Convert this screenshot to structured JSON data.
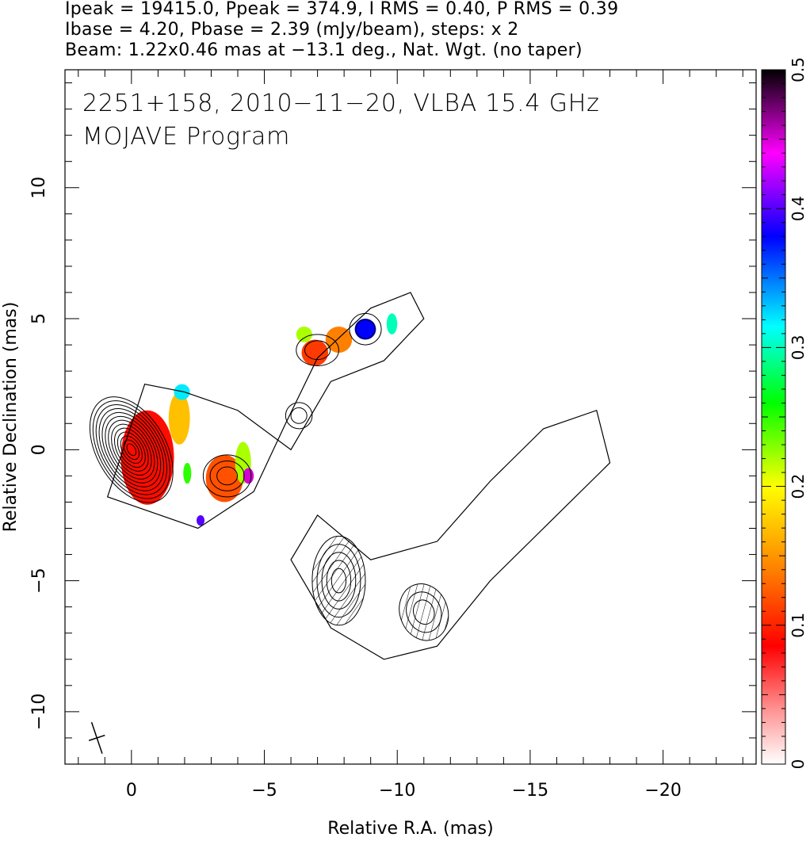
{
  "header": {
    "line1": "Ipeak = 19415.0, Ppeak = 374.9, I RMS = 0.40, P RMS = 0.39",
    "line2": "Ibase = 4.20, Pbase = 2.39 (mJy/beam), steps: x 2",
    "line3": "Beam: 1.22x0.46 mas at −13.1 deg., Nat. Wgt. (no taper)"
  },
  "overlay": {
    "line1": "2251+158, 2010−11−20, VLBA 15.4 GHz",
    "line2": "MOJAVE Program"
  },
  "chart_data": {
    "type": "heatmap",
    "xlabel": "Relative R.A. (mas)",
    "ylabel": "Relative Declination (mas)",
    "xlim": [
      2.5,
      -23.5
    ],
    "ylim": [
      -12,
      14.5
    ],
    "x_ticks": [
      0,
      -5,
      -10,
      -15,
      -20
    ],
    "x_tick_labels": [
      "0",
      "−5",
      "−10",
      "−15",
      "−20"
    ],
    "y_ticks": [
      -10,
      -5,
      0,
      5,
      10
    ],
    "y_tick_labels": [
      "−10",
      "−5",
      "0",
      "5",
      "10"
    ],
    "colorbar": {
      "range": [
        0,
        0.5
      ],
      "ticks": [
        0,
        0.1,
        0.2,
        0.3,
        0.4,
        0.5
      ],
      "tick_labels": [
        "0",
        "0.1",
        "0.2",
        "0.3",
        "0.4",
        "0.5"
      ],
      "stops": [
        "#ffffff",
        "#ff9090",
        "#ff0000",
        "#ff8000",
        "#ffff00",
        "#00ff00",
        "#00ffff",
        "#0000ff",
        "#ff00ff",
        "#000000"
      ]
    },
    "intensity_components": [
      {
        "x": 0.0,
        "y": 0.0,
        "rx": 1.3,
        "ry": 2.2,
        "rot": -30,
        "levels": 13
      },
      {
        "x": -3.6,
        "y": -1.0,
        "rx": 0.9,
        "ry": 0.8,
        "rot": 0,
        "levels": 3
      },
      {
        "x": -7.0,
        "y": 3.8,
        "rx": 0.8,
        "ry": 0.6,
        "rot": 0,
        "levels": 2
      },
      {
        "x": -8.8,
        "y": 4.6,
        "rx": 0.6,
        "ry": 0.6,
        "rot": 0,
        "levels": 2
      },
      {
        "x": -6.3,
        "y": 1.3,
        "rx": 0.5,
        "ry": 0.5,
        "rot": 0,
        "levels": 2
      },
      {
        "x": -7.8,
        "y": -5.0,
        "rx": 1.0,
        "ry": 1.7,
        "rot": 0,
        "levels": 5
      },
      {
        "x": -11.0,
        "y": -6.2,
        "rx": 0.9,
        "ry": 1.1,
        "rot": -20,
        "levels": 3
      }
    ],
    "fractional_polarization_regions": [
      {
        "x": -0.6,
        "y": -0.3,
        "rx": 1.0,
        "ry": 1.8,
        "value": 0.09
      },
      {
        "x": -1.8,
        "y": 1.2,
        "rx": 0.4,
        "ry": 1.0,
        "value": 0.17
      },
      {
        "x": -1.9,
        "y": 2.2,
        "rx": 0.3,
        "ry": 0.3,
        "value": 0.32
      },
      {
        "x": -3.5,
        "y": -1.1,
        "rx": 0.7,
        "ry": 0.9,
        "value": 0.12
      },
      {
        "x": -4.2,
        "y": -0.5,
        "rx": 0.3,
        "ry": 0.8,
        "value": 0.22
      },
      {
        "x": -4.4,
        "y": -1.0,
        "rx": 0.2,
        "ry": 0.3,
        "value": 0.45
      },
      {
        "x": -6.9,
        "y": 3.7,
        "rx": 0.5,
        "ry": 0.5,
        "value": 0.11
      },
      {
        "x": -6.5,
        "y": 4.4,
        "rx": 0.3,
        "ry": 0.3,
        "value": 0.22
      },
      {
        "x": -7.8,
        "y": 4.2,
        "rx": 0.5,
        "ry": 0.5,
        "value": 0.14
      },
      {
        "x": -8.8,
        "y": 4.6,
        "rx": 0.4,
        "ry": 0.4,
        "value": 0.38
      },
      {
        "x": -9.8,
        "y": 4.8,
        "rx": 0.2,
        "ry": 0.4,
        "value": 0.3
      },
      {
        "x": -2.1,
        "y": -0.9,
        "rx": 0.15,
        "ry": 0.4,
        "value": 0.25
      },
      {
        "x": -2.6,
        "y": -2.7,
        "rx": 0.15,
        "ry": 0.2,
        "value": 0.4
      }
    ]
  }
}
